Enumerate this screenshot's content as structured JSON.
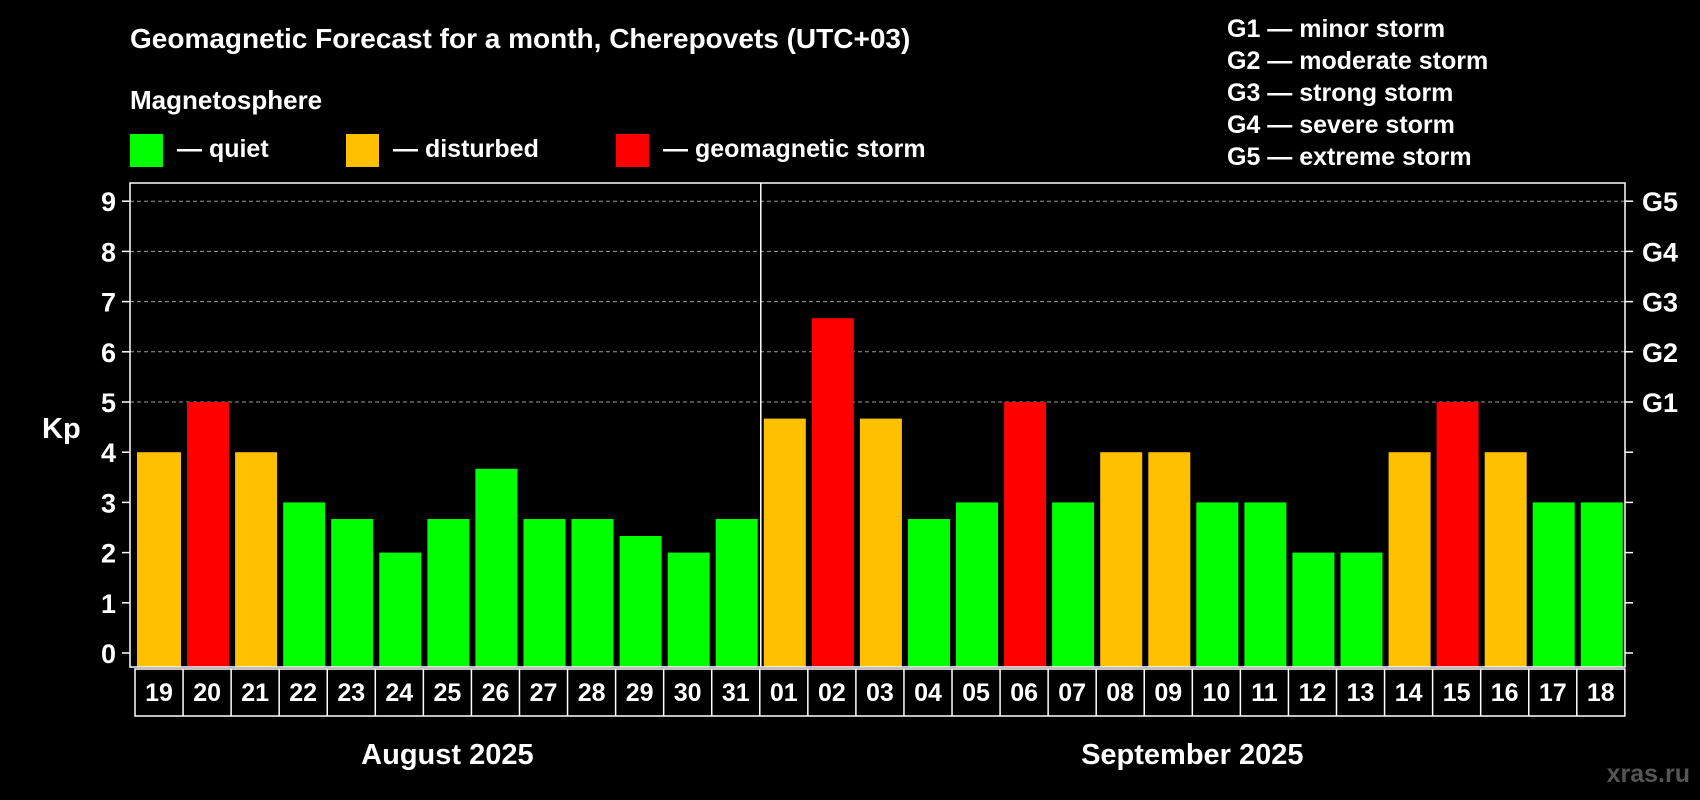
{
  "chart_data": {
    "type": "bar",
    "title": "Geomagnetic Forecast for a month, Cherepovets (UTC+03)",
    "legend_title": "Magnetosphere",
    "legend": [
      {
        "label": "— quiet",
        "color": "#00ff00"
      },
      {
        "label": "— disturbed",
        "color": "#ffc000"
      },
      {
        "label": "— geomagnetic storm",
        "color": "#ff0000"
      }
    ],
    "storm_scale": [
      "G1 — minor storm",
      "G2 — moderate storm",
      "G3 — strong storm",
      "G4 — severe storm",
      "G5 — extreme storm"
    ],
    "ylabel": "Kp",
    "ylim": [
      0,
      9
    ],
    "yticks": [
      "0",
      "1",
      "2",
      "3",
      "4",
      "5",
      "6",
      "7",
      "8",
      "9"
    ],
    "g_levels": [
      {
        "label": "G1",
        "kp": 5
      },
      {
        "label": "G2",
        "kp": 6
      },
      {
        "label": "G3",
        "kp": 7
      },
      {
        "label": "G4",
        "kp": 8
      },
      {
        "label": "G5",
        "kp": 9
      }
    ],
    "categories": [
      "19",
      "20",
      "21",
      "22",
      "23",
      "24",
      "25",
      "26",
      "27",
      "28",
      "29",
      "30",
      "31",
      "01",
      "02",
      "03",
      "04",
      "05",
      "06",
      "07",
      "08",
      "09",
      "10",
      "11",
      "12",
      "13",
      "14",
      "15",
      "16",
      "17",
      "18"
    ],
    "values": [
      4,
      5,
      4,
      3,
      2.67,
      2,
      2.67,
      3.67,
      2.67,
      2.67,
      2.33,
      2,
      2.67,
      4.67,
      6.67,
      4.67,
      2.67,
      3,
      5,
      3,
      4,
      4,
      3,
      3,
      2,
      2,
      4,
      5,
      4,
      3,
      3
    ],
    "status": [
      "disturbed",
      "storm",
      "disturbed",
      "quiet",
      "quiet",
      "quiet",
      "quiet",
      "quiet",
      "quiet",
      "quiet",
      "quiet",
      "quiet",
      "quiet",
      "disturbed",
      "storm",
      "disturbed",
      "quiet",
      "quiet",
      "storm",
      "quiet",
      "disturbed",
      "disturbed",
      "quiet",
      "quiet",
      "quiet",
      "quiet",
      "disturbed",
      "storm",
      "disturbed",
      "quiet",
      "quiet"
    ],
    "status_colors": {
      "quiet": "#00ff00",
      "disturbed": "#ffc000",
      "storm": "#ff0000"
    },
    "months": [
      {
        "label": "August 2025",
        "from": 0,
        "to": 12
      },
      {
        "label": "September 2025",
        "from": 13,
        "to": 30
      }
    ],
    "grid": true
  },
  "watermark": "xras.ru"
}
